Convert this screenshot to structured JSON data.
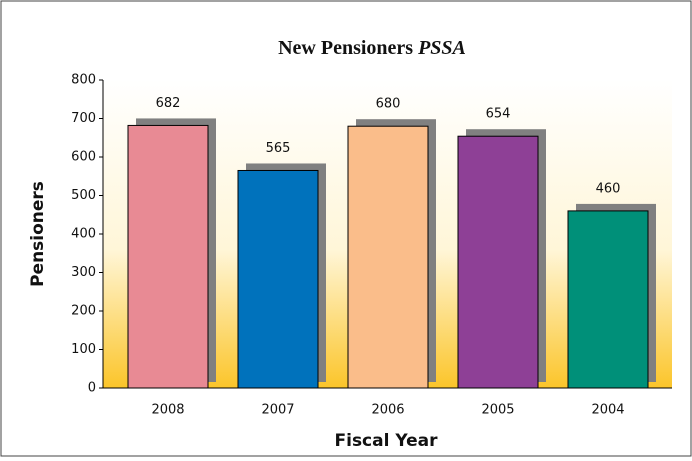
{
  "chart_data": {
    "type": "bar",
    "title": "New Pensioners",
    "title_italic": "PSSA",
    "x_label": "Fiscal Year",
    "y_label": "Pensioners",
    "categories": [
      "2008",
      "2007",
      "2006",
      "2005",
      "2004"
    ],
    "values": [
      682,
      565,
      680,
      654,
      460
    ],
    "colors": [
      "#e88a94",
      "#0072bc",
      "#fabd8a",
      "#8e4096",
      "#009079"
    ],
    "shadow_color": "#808080",
    "ylim": [
      0,
      800
    ],
    "yticks": [
      0,
      100,
      200,
      300,
      400,
      500,
      600,
      700,
      800
    ],
    "grid": false
  }
}
